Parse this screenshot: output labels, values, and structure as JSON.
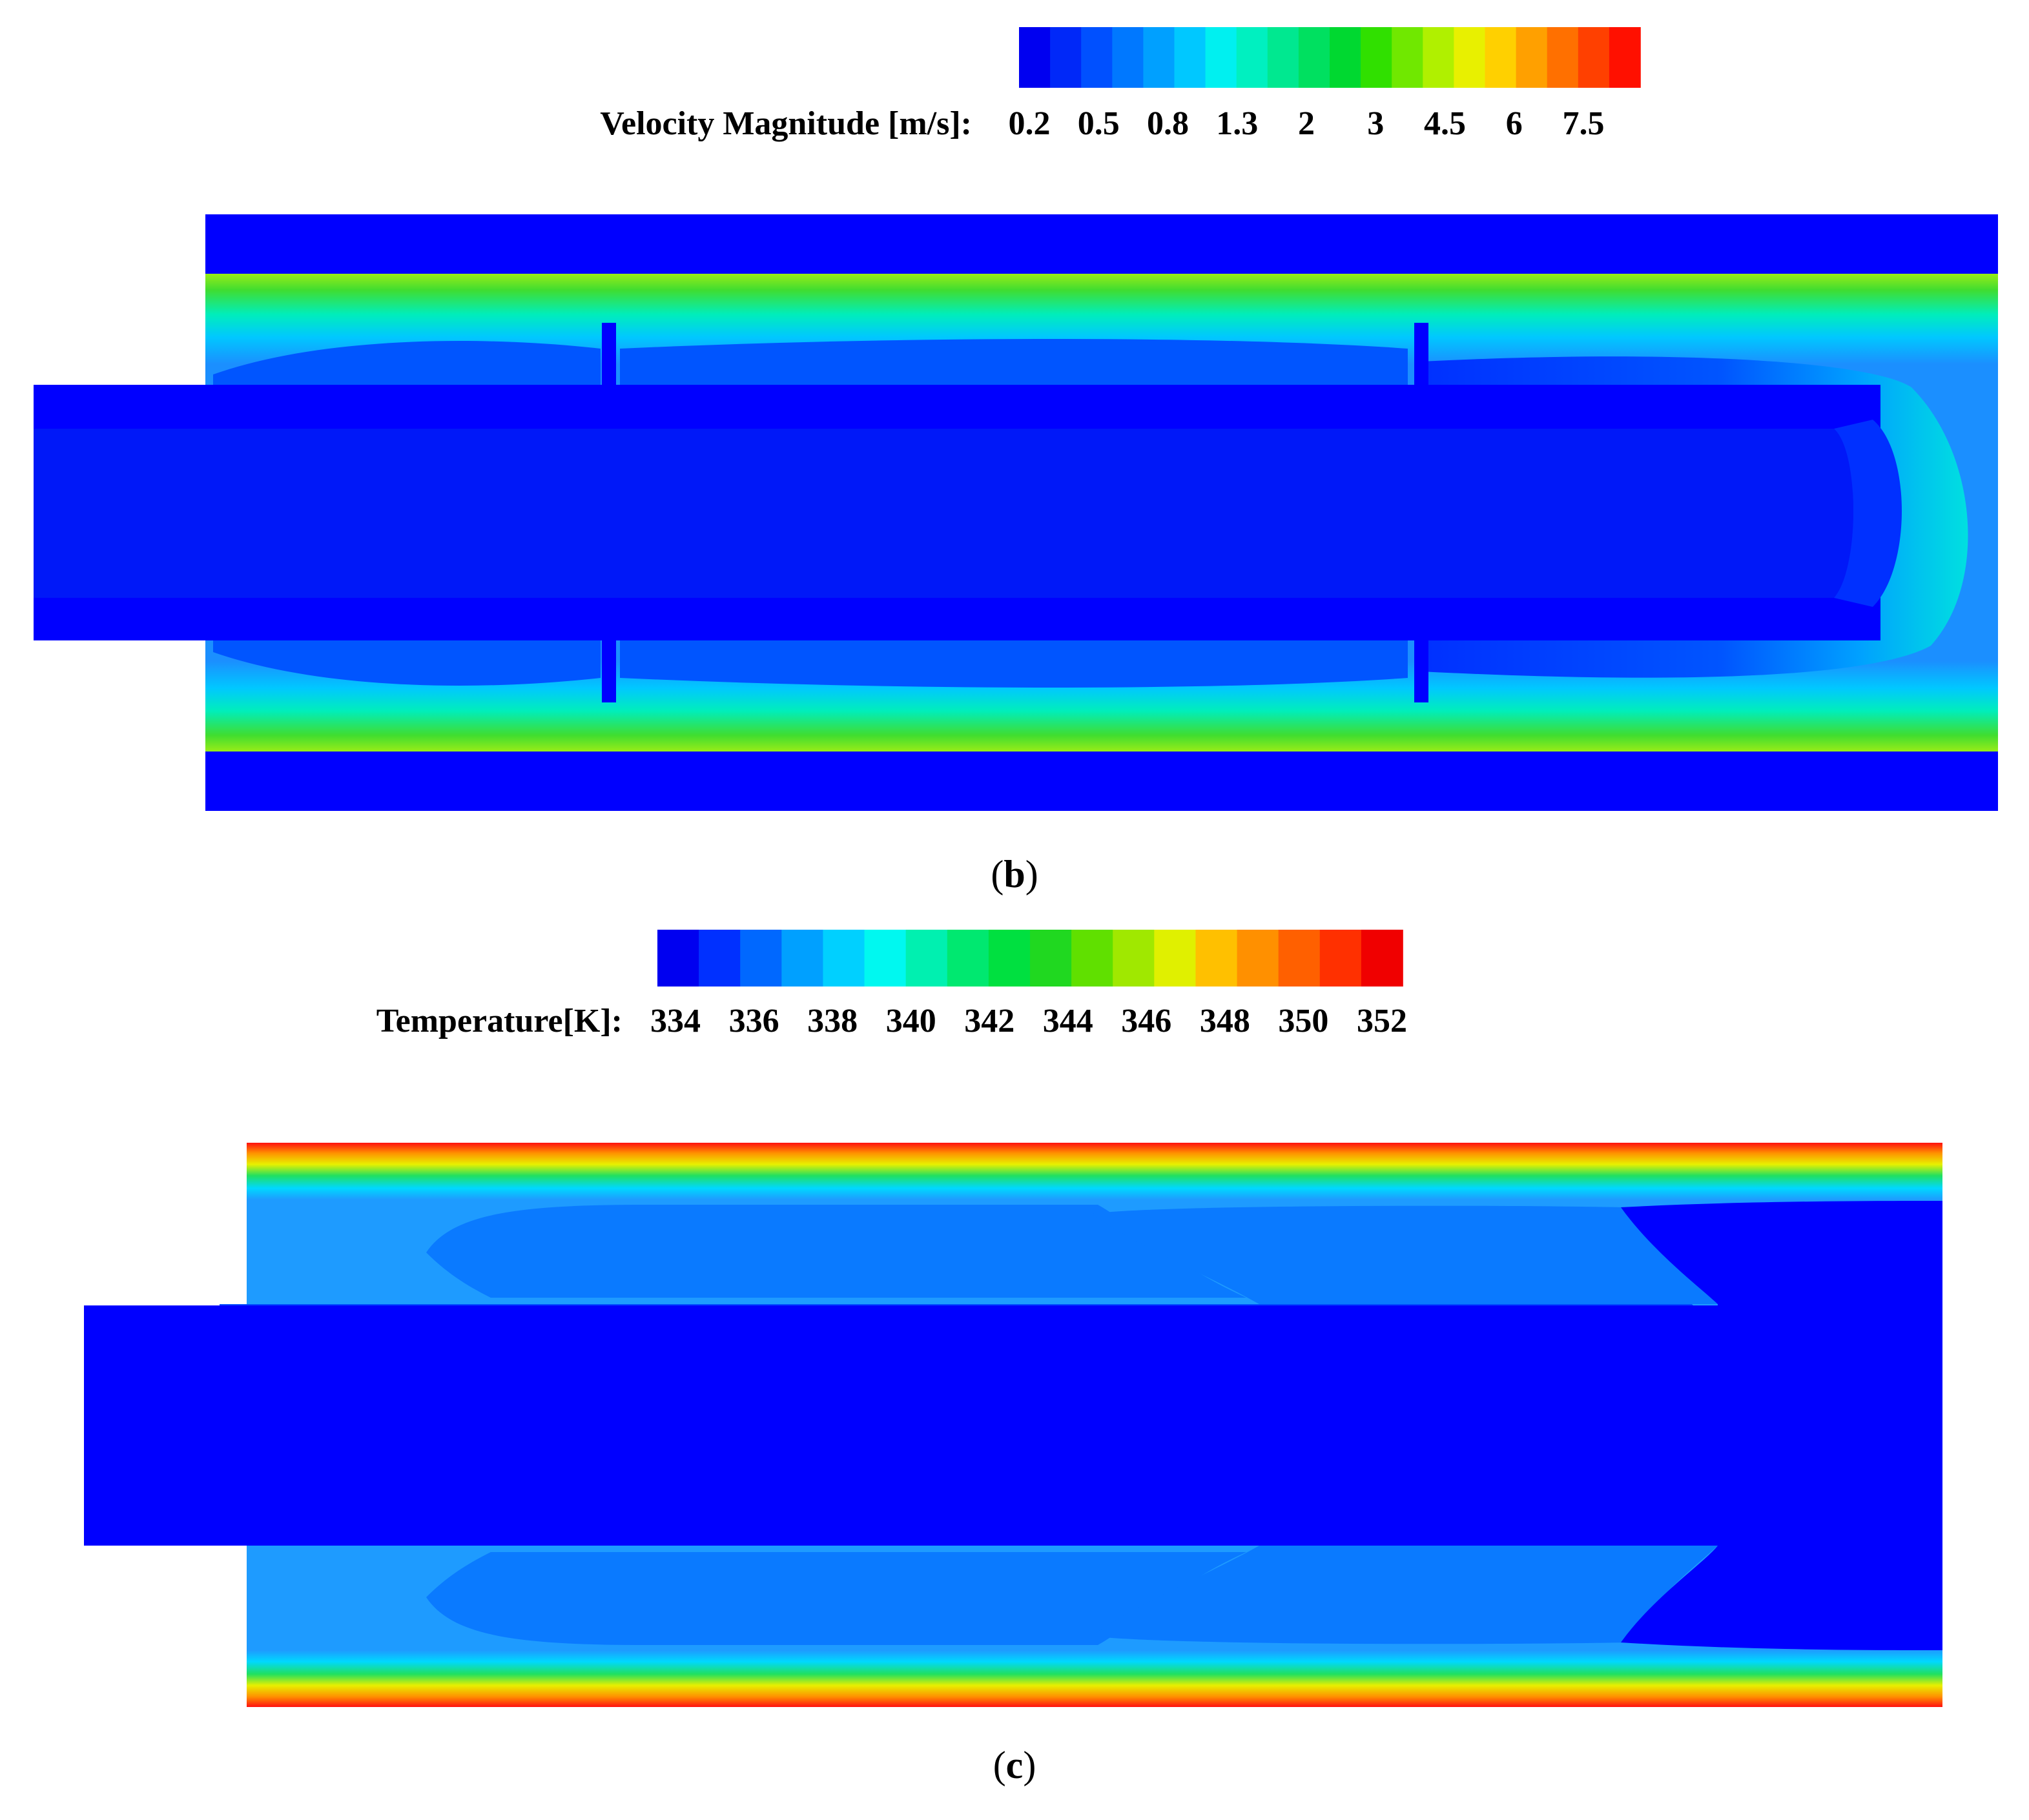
{
  "panels": [
    {
      "id": "b",
      "caption_letter": "b",
      "legend": {
        "label": "Velocity Magnitude [m/s]:",
        "ticks": [
          "0.2",
          "0.5",
          "0.8",
          "1.3",
          "2",
          "3",
          "4.5",
          "6",
          "7.5"
        ],
        "colors": [
          "#0000f0",
          "#0028f8",
          "#0050ff",
          "#0078ff",
          "#00a0ff",
          "#00c8ff",
          "#00f0f0",
          "#00f0c0",
          "#00e890",
          "#00e060",
          "#00d830",
          "#30e000",
          "#70e800",
          "#b0f000",
          "#e8f000",
          "#ffd000",
          "#ffa000",
          "#ff7000",
          "#ff4000",
          "#ff1000"
        ]
      },
      "field_colors": {
        "solid": "#0000ff",
        "core_flow": "#0018f8",
        "core_edge": "#0030ff",
        "wake_region": "#0055ff",
        "bulk_mid": "#1b8fff",
        "bulk_light": "#00c8ff",
        "gap_edge": "#00eebb",
        "gap_mid": "#40dd30",
        "gap_peak": "#98ec18"
      }
    },
    {
      "id": "c",
      "caption_letter": "c",
      "legend": {
        "label": "Temperature[K]:",
        "ticks": [
          "334",
          "336",
          "338",
          "340",
          "342",
          "344",
          "346",
          "348",
          "350",
          "352"
        ],
        "colors": [
          "#0000f0",
          "#0030ff",
          "#0068ff",
          "#00a0ff",
          "#00d0ff",
          "#00f8f0",
          "#00f0b0",
          "#00e870",
          "#00e040",
          "#20d820",
          "#60e000",
          "#a0e800",
          "#e0f000",
          "#ffc000",
          "#ff9000",
          "#ff6000",
          "#ff3000",
          "#f00000"
        ]
      },
      "field_colors": {
        "cold": "#0000ff",
        "cool": "#0048ff",
        "mid": "#0a7aff",
        "light_blue": "#1e9bff",
        "cyan": "#00d8ff",
        "green": "#20e060",
        "yellow": "#e8f000",
        "orange": "#ff9000",
        "hot": "#ff1010"
      }
    }
  ]
}
